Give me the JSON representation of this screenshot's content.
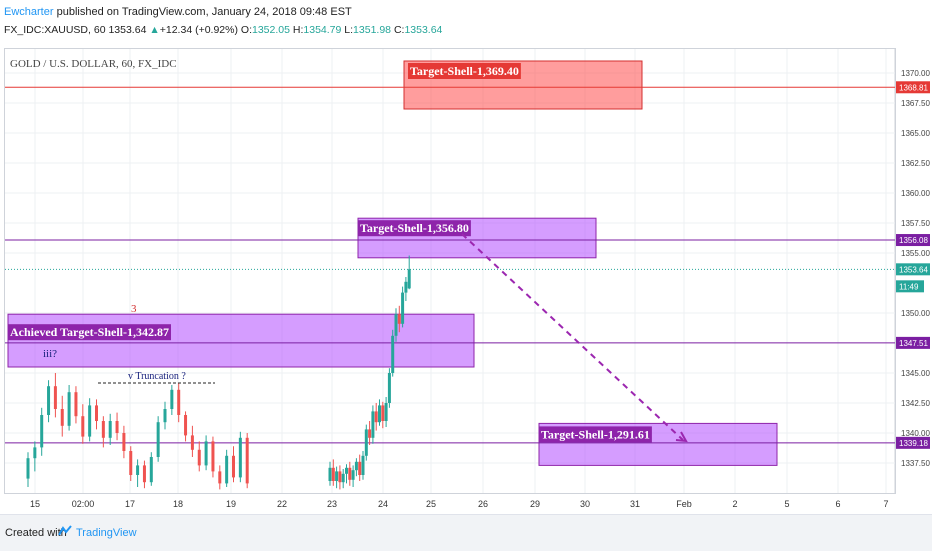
{
  "header": {
    "author": "Ewcharter",
    "published": " published on TradingView.com, January 24, 2018 09:48 EST",
    "symbol": "FX_IDC:XAUUSD, 60",
    "last": "1353.64",
    "change_arrow": "▲",
    "change": "+12.34 (+0.92%)",
    "o_label": "O:",
    "o": "1352.05",
    "h_label": "H:",
    "h": "1354.79",
    "l_label": "L:",
    "l": "1351.98",
    "c_label": "C:",
    "c": "1353.64"
  },
  "legend": "GOLD / U.S. DOLLAR, 60, FX_IDC",
  "footer": {
    "created_with": "Created with",
    "brand": "TradingView"
  },
  "colors": {
    "red_zone": "#ff4d4d",
    "purple_zone": "#b34dff",
    "line_purple": "#7b1fa2",
    "line_red": "#e53935",
    "up_candle": "#26a69a",
    "down_candle": "#ef5350"
  },
  "chart_data": {
    "type": "candlestick",
    "title": "GOLD / U.S. DOLLAR, 60, FX_IDC",
    "y_range": [
      1335.0,
      1372.0
    ],
    "y_ticks": [
      "1370.00",
      "1367.50",
      "1365.00",
      "1362.50",
      "1360.00",
      "1357.50",
      "1355.00",
      "1350.00",
      "1345.00",
      "1342.50",
      "1340.00",
      "1337.50"
    ],
    "x_ticks": [
      "15",
      "02:00",
      "17",
      "18",
      "19",
      "22",
      "23",
      "24",
      "25",
      "26",
      "29",
      "30",
      "31",
      "Feb",
      "2",
      "5",
      "6",
      "7"
    ],
    "price_tags": [
      {
        "label": "1368.81",
        "value": 1368.81,
        "color": "#e53935"
      },
      {
        "label": "1356.08",
        "value": 1356.08,
        "color": "#7b1fa2"
      },
      {
        "label": "1353.64",
        "value": 1353.64,
        "color": "#26a69a"
      },
      {
        "label": "11:49",
        "value": 1352.0,
        "color": "#26a69a"
      },
      {
        "label": "1347.51",
        "value": 1347.51,
        "color": "#7b1fa2"
      },
      {
        "label": "1339.18",
        "value": 1339.18,
        "color": "#7b1fa2"
      }
    ],
    "horizontal_lines": [
      {
        "value": 1368.81,
        "color": "#e53935"
      },
      {
        "value": 1356.08,
        "color": "#7b1fa2"
      },
      {
        "value": 1347.51,
        "color": "#7b1fa2"
      },
      {
        "value": 1339.18,
        "color": "#7b1fa2"
      }
    ],
    "zones": [
      {
        "label": "Target-Shell-1,369.40",
        "x0": "21 Jan",
        "x1": "30 Jan",
        "top": 1371.0,
        "bottom": 1367.0,
        "color": "red"
      },
      {
        "label": "Target-Shell-1,356.80",
        "x0": "23 Jan",
        "x1": "30 Jan",
        "top": 1357.9,
        "bottom": 1354.6,
        "color": "purple"
      },
      {
        "label": "Achieved Target-Shell-1,342.87",
        "x0": "15 Jan",
        "x1": "25 Jan",
        "top": 1349.9,
        "bottom": 1345.5,
        "color": "purple"
      },
      {
        "label": "Target-Shell-1,291.61",
        "x0": "29 Jan",
        "x1": "5 Feb",
        "top": 1340.8,
        "bottom": 1337.3,
        "color": "purple"
      }
    ],
    "annotations": [
      {
        "text": "3",
        "color": "#d32f2f"
      },
      {
        "text": "iii?",
        "color": "#1a237e"
      },
      {
        "text": "v Truncation ?",
        "color": "#1a237e"
      }
    ],
    "projection": {
      "from": [
        "24 Jan",
        1356.5
      ],
      "to": [
        "Feb 1",
        1339.8
      ],
      "style": "dashed"
    },
    "candles": [
      {
        "o": 1336.2,
        "h": 1338.4,
        "l": 1335.5,
        "c": 1337.9
      },
      {
        "o": 1337.9,
        "h": 1339.3,
        "l": 1336.8,
        "c": 1338.8
      },
      {
        "o": 1338.8,
        "h": 1342.1,
        "l": 1338.1,
        "c": 1341.5
      },
      {
        "o": 1341.5,
        "h": 1344.4,
        "l": 1340.9,
        "c": 1343.9
      },
      {
        "o": 1343.9,
        "h": 1345.0,
        "l": 1341.3,
        "c": 1342.0
      },
      {
        "o": 1342.0,
        "h": 1343.1,
        "l": 1339.7,
        "c": 1340.6
      },
      {
        "o": 1340.6,
        "h": 1344.0,
        "l": 1340.2,
        "c": 1343.4
      },
      {
        "o": 1343.4,
        "h": 1343.9,
        "l": 1340.8,
        "c": 1341.4
      },
      {
        "o": 1341.4,
        "h": 1342.4,
        "l": 1339.1,
        "c": 1339.7
      },
      {
        "o": 1339.7,
        "h": 1342.9,
        "l": 1339.3,
        "c": 1342.3
      },
      {
        "o": 1342.3,
        "h": 1342.8,
        "l": 1340.3,
        "c": 1341.0
      },
      {
        "o": 1341.0,
        "h": 1341.4,
        "l": 1338.8,
        "c": 1339.6
      },
      {
        "o": 1339.6,
        "h": 1341.6,
        "l": 1339.0,
        "c": 1341.0
      },
      {
        "o": 1341.0,
        "h": 1341.7,
        "l": 1339.4,
        "c": 1340.0
      },
      {
        "o": 1340.0,
        "h": 1340.6,
        "l": 1337.9,
        "c": 1338.5
      },
      {
        "o": 1338.5,
        "h": 1338.9,
        "l": 1336.0,
        "c": 1336.5
      },
      {
        "o": 1336.5,
        "h": 1337.8,
        "l": 1335.5,
        "c": 1337.3
      },
      {
        "o": 1337.3,
        "h": 1337.7,
        "l": 1335.4,
        "c": 1335.9
      },
      {
        "o": 1335.9,
        "h": 1338.4,
        "l": 1335.6,
        "c": 1338.0
      },
      {
        "o": 1338.0,
        "h": 1341.4,
        "l": 1337.6,
        "c": 1340.9
      },
      {
        "o": 1340.9,
        "h": 1342.6,
        "l": 1340.3,
        "c": 1342.0
      },
      {
        "o": 1342.0,
        "h": 1344.0,
        "l": 1341.5,
        "c": 1343.6
      },
      {
        "o": 1343.6,
        "h": 1344.2,
        "l": 1340.9,
        "c": 1341.5
      },
      {
        "o": 1341.5,
        "h": 1341.8,
        "l": 1339.3,
        "c": 1339.8
      },
      {
        "o": 1339.8,
        "h": 1340.6,
        "l": 1338.0,
        "c": 1338.6
      },
      {
        "o": 1338.6,
        "h": 1339.3,
        "l": 1336.8,
        "c": 1337.3
      },
      {
        "o": 1337.3,
        "h": 1339.8,
        "l": 1336.9,
        "c": 1339.3
      },
      {
        "o": 1339.3,
        "h": 1339.7,
        "l": 1336.3,
        "c": 1336.8
      },
      {
        "o": 1336.8,
        "h": 1337.3,
        "l": 1335.3,
        "c": 1335.8
      },
      {
        "o": 1335.8,
        "h": 1338.6,
        "l": 1335.5,
        "c": 1338.1
      },
      {
        "o": 1338.1,
        "h": 1338.9,
        "l": 1335.9,
        "c": 1336.3
      },
      {
        "o": 1336.3,
        "h": 1340.1,
        "l": 1335.9,
        "c": 1339.6
      },
      {
        "o": 1339.6,
        "h": 1340.0,
        "l": 1335.4,
        "c": 1335.8
      },
      {
        "o": 1336.0,
        "h": 1337.6,
        "l": 1335.6,
        "c": 1337.1
      },
      {
        "o": 1337.1,
        "h": 1337.8,
        "l": 1335.6,
        "c": 1336.0
      },
      {
        "o": 1336.0,
        "h": 1337.2,
        "l": 1335.4,
        "c": 1336.8
      },
      {
        "o": 1336.8,
        "h": 1337.3,
        "l": 1335.3,
        "c": 1335.9
      },
      {
        "o": 1335.9,
        "h": 1337.0,
        "l": 1335.4,
        "c": 1336.6
      },
      {
        "o": 1336.6,
        "h": 1337.4,
        "l": 1335.8,
        "c": 1337.1
      },
      {
        "o": 1337.1,
        "h": 1337.6,
        "l": 1335.6,
        "c": 1336.1
      },
      {
        "o": 1336.1,
        "h": 1337.3,
        "l": 1335.5,
        "c": 1336.9
      },
      {
        "o": 1336.9,
        "h": 1337.9,
        "l": 1336.4,
        "c": 1337.6
      },
      {
        "o": 1337.6,
        "h": 1338.2,
        "l": 1336.0,
        "c": 1336.5
      },
      {
        "o": 1336.5,
        "h": 1338.5,
        "l": 1336.1,
        "c": 1338.1
      },
      {
        "o": 1338.1,
        "h": 1340.7,
        "l": 1337.7,
        "c": 1340.3
      },
      {
        "o": 1340.3,
        "h": 1341.0,
        "l": 1339.0,
        "c": 1339.6
      },
      {
        "o": 1339.6,
        "h": 1342.3,
        "l": 1339.1,
        "c": 1341.8
      },
      {
        "o": 1341.8,
        "h": 1342.5,
        "l": 1340.2,
        "c": 1340.9
      },
      {
        "o": 1340.9,
        "h": 1342.8,
        "l": 1340.6,
        "c": 1342.3
      },
      {
        "o": 1342.3,
        "h": 1342.6,
        "l": 1340.4,
        "c": 1341.0
      },
      {
        "o": 1341.0,
        "h": 1343.0,
        "l": 1340.5,
        "c": 1342.5
      },
      {
        "o": 1342.5,
        "h": 1345.4,
        "l": 1342.1,
        "c": 1345.0
      },
      {
        "o": 1345.0,
        "h": 1348.6,
        "l": 1344.7,
        "c": 1348.1
      },
      {
        "o": 1348.1,
        "h": 1350.4,
        "l": 1347.6,
        "c": 1349.9
      },
      {
        "o": 1349.9,
        "h": 1350.6,
        "l": 1348.4,
        "c": 1349.1
      },
      {
        "o": 1349.1,
        "h": 1352.2,
        "l": 1348.8,
        "c": 1351.7
      },
      {
        "o": 1351.7,
        "h": 1353.0,
        "l": 1351.0,
        "c": 1352.6
      },
      {
        "o": 1352.05,
        "h": 1354.79,
        "l": 1351.98,
        "c": 1353.64
      }
    ]
  }
}
